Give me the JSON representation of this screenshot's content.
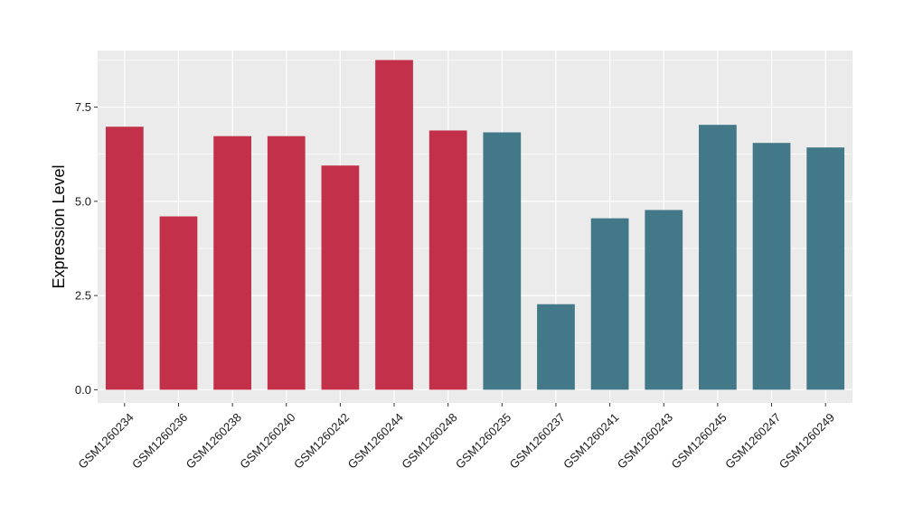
{
  "chart_data": {
    "type": "bar",
    "ylabel": "Expression Level",
    "xlabel": "",
    "ylim": [
      -0.35,
      9.0
    ],
    "yticks": [
      0.0,
      2.5,
      5.0,
      7.5
    ],
    "ytick_labels": [
      "0.0",
      "2.5",
      "5.0",
      "7.5"
    ],
    "grid": true,
    "categories": [
      "GSM1260234",
      "GSM1260236",
      "GSM1260238",
      "GSM1260240",
      "GSM1260242",
      "GSM1260244",
      "GSM1260248",
      "GSM1260235",
      "GSM1260237",
      "GSM1260241",
      "GSM1260243",
      "GSM1260245",
      "GSM1260247",
      "GSM1260249"
    ],
    "values": [
      6.98,
      4.6,
      6.73,
      6.73,
      5.95,
      8.75,
      6.88,
      6.83,
      2.27,
      4.55,
      4.77,
      7.03,
      6.55,
      6.43
    ],
    "bar_colors": [
      "#c3304a",
      "#c3304a",
      "#c3304a",
      "#c3304a",
      "#c3304a",
      "#c3304a",
      "#c3304a",
      "#427888",
      "#427888",
      "#427888",
      "#427888",
      "#427888",
      "#427888",
      "#427888"
    ],
    "panel_background": "#ebebeb",
    "grid_color": "#ffffff"
  }
}
